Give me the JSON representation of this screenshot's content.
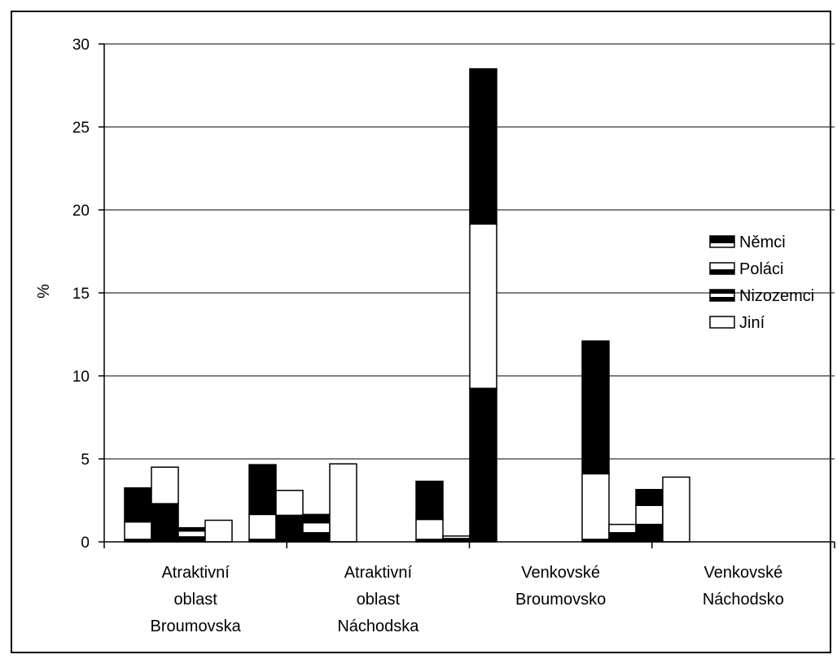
{
  "chart_data": {
    "type": "bar",
    "stacked": true,
    "title": "",
    "xlabel": "",
    "ylabel": "%",
    "ylim": [
      0,
      30
    ],
    "yticks": [
      "0",
      "5",
      "10",
      "15",
      "20",
      "25",
      "30"
    ],
    "grid": "horizontal",
    "legend_position": "right",
    "categories": [
      {
        "lines": [
          "Atraktivní",
          "oblast",
          "Broumovska"
        ]
      },
      {
        "lines": [
          "Atraktivní",
          "oblast",
          "Náchodska"
        ]
      },
      {
        "lines": [
          "Venkovské",
          "Broumovsko"
        ]
      },
      {
        "lines": [
          "Venkovské",
          "Náchodsko"
        ]
      }
    ],
    "legend": [
      {
        "name": "Němci",
        "swatch": "top-black"
      },
      {
        "name": "Poláci",
        "swatch": "bottom-black"
      },
      {
        "name": "Nizozemci",
        "swatch": "middle-white"
      },
      {
        "name": "Jiní",
        "swatch": "white"
      }
    ],
    "groups": [
      {
        "category": 0,
        "bars": [
          {
            "series": "Němci",
            "segments": [
              {
                "from": 0,
                "to": 0.15,
                "fill": "#000"
              },
              {
                "from": 0.15,
                "to": 1.2,
                "fill": "#fff"
              },
              {
                "from": 1.2,
                "to": 3.25,
                "fill": "#000"
              }
            ]
          },
          {
            "series": "Poláci",
            "segments": [
              {
                "from": 0,
                "to": 2.3,
                "fill": "#000"
              },
              {
                "from": 2.3,
                "to": 4.5,
                "fill": "#fff"
              }
            ]
          },
          {
            "series": "Nizozemci",
            "segments": [
              {
                "from": 0,
                "to": 0.3,
                "fill": "#000"
              },
              {
                "from": 0.3,
                "to": 0.65,
                "fill": "#fff"
              },
              {
                "from": 0.65,
                "to": 0.85,
                "fill": "#000"
              }
            ]
          },
          {
            "series": "Jiní",
            "segments": [
              {
                "from": 0,
                "to": 1.3,
                "fill": "#fff"
              }
            ]
          }
        ]
      },
      {
        "category": 1,
        "bars": [
          {
            "series": "Němci",
            "segments": [
              {
                "from": 0,
                "to": 0.15,
                "fill": "#000"
              },
              {
                "from": 0.15,
                "to": 1.65,
                "fill": "#fff"
              },
              {
                "from": 1.65,
                "to": 4.65,
                "fill": "#000"
              }
            ]
          },
          {
            "series": "Poláci",
            "segments": [
              {
                "from": 0,
                "to": 1.6,
                "fill": "#000"
              },
              {
                "from": 1.6,
                "to": 3.1,
                "fill": "#fff"
              }
            ]
          },
          {
            "series": "Nizozemci",
            "segments": [
              {
                "from": 0,
                "to": 0.55,
                "fill": "#000"
              },
              {
                "from": 0.55,
                "to": 1.15,
                "fill": "#fff"
              },
              {
                "from": 1.15,
                "to": 1.65,
                "fill": "#000"
              }
            ]
          },
          {
            "series": "Jiní",
            "segments": [
              {
                "from": 0,
                "to": 4.7,
                "fill": "#fff"
              }
            ]
          }
        ]
      },
      {
        "category": 2,
        "bars": [
          {
            "series": "Němci",
            "segments": [
              {
                "from": 0,
                "to": 0.15,
                "fill": "#000"
              },
              {
                "from": 0.15,
                "to": 1.35,
                "fill": "#fff"
              },
              {
                "from": 1.35,
                "to": 3.65,
                "fill": "#000"
              }
            ]
          },
          {
            "series": "Poláci",
            "segments": [
              {
                "from": 0,
                "to": 0.2,
                "fill": "#000"
              },
              {
                "from": 0.2,
                "to": 0.35,
                "fill": "#fff"
              }
            ]
          },
          {
            "series": "Nizozemci",
            "segments": [
              {
                "from": 0,
                "to": 9.25,
                "fill": "#000"
              },
              {
                "from": 9.25,
                "to": 19.15,
                "fill": "#fff"
              },
              {
                "from": 19.15,
                "to": 28.5,
                "fill": "#000"
              }
            ]
          }
        ]
      },
      {
        "category": 3,
        "bars": [
          {
            "series": "Němci",
            "segments": [
              {
                "from": 0,
                "to": 0.15,
                "fill": "#000"
              },
              {
                "from": 0.15,
                "to": 4.1,
                "fill": "#fff"
              },
              {
                "from": 4.1,
                "to": 12.1,
                "fill": "#000"
              }
            ]
          },
          {
            "series": "Poláci",
            "segments": [
              {
                "from": 0,
                "to": 0.55,
                "fill": "#000"
              },
              {
                "from": 0.55,
                "to": 1.05,
                "fill": "#fff"
              }
            ]
          },
          {
            "series": "Nizozemci",
            "segments": [
              {
                "from": 0,
                "to": 1.05,
                "fill": "#000"
              },
              {
                "from": 1.05,
                "to": 2.2,
                "fill": "#fff"
              },
              {
                "from": 2.2,
                "to": 3.15,
                "fill": "#000"
              }
            ]
          },
          {
            "series": "Jiní",
            "segments": [
              {
                "from": 0,
                "to": 3.9,
                "fill": "#fff"
              }
            ]
          }
        ]
      }
    ]
  }
}
